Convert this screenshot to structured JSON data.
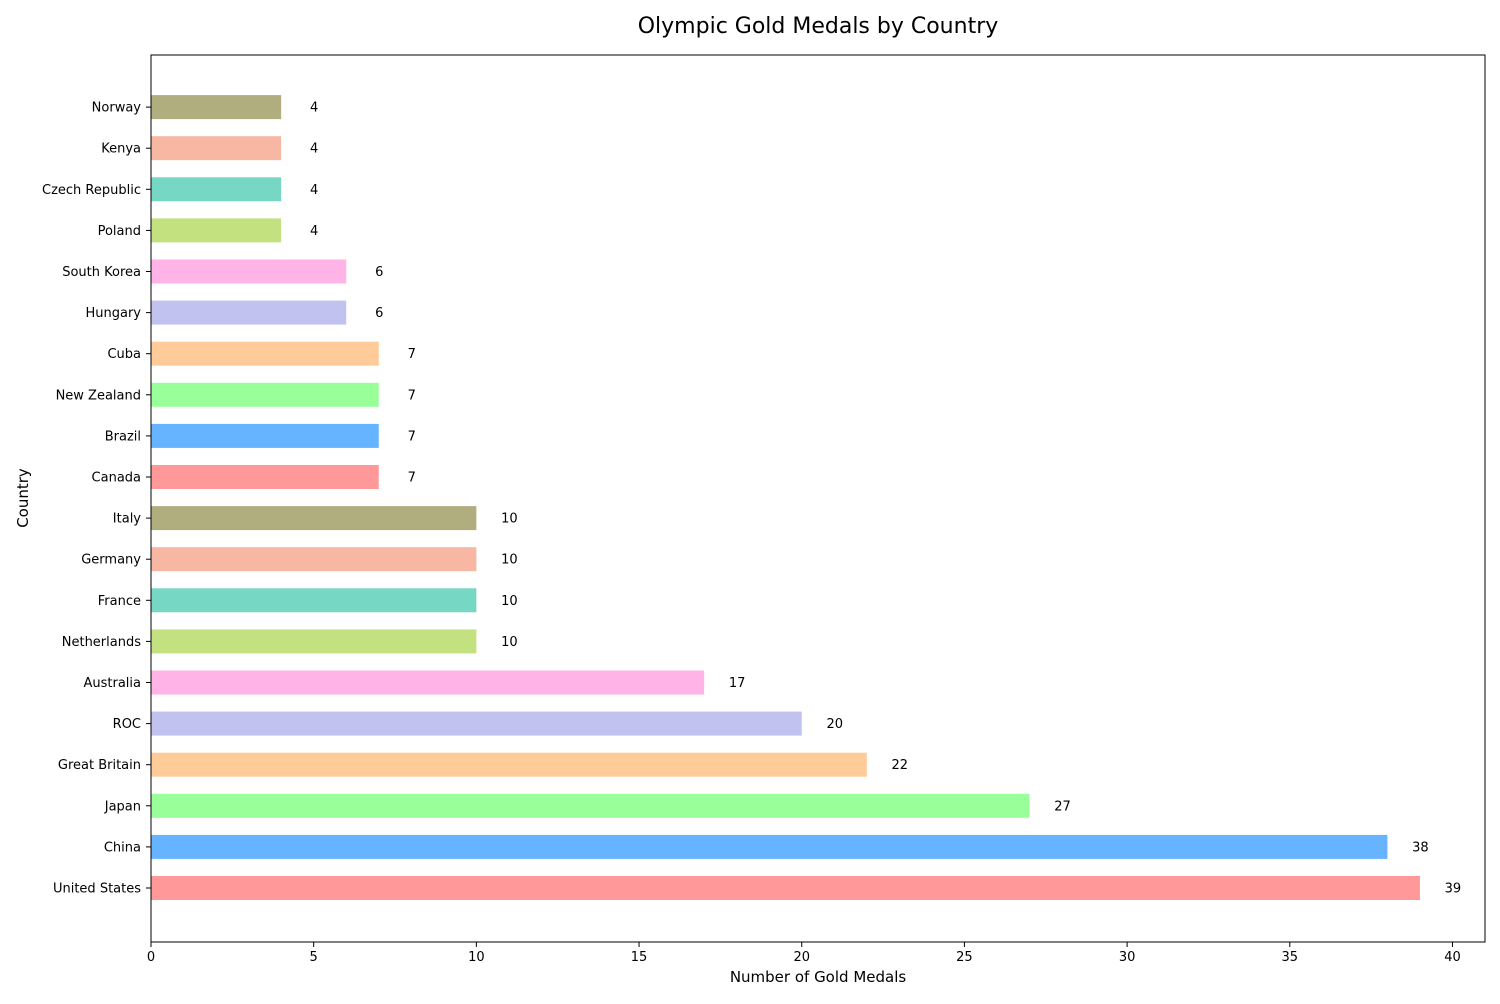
{
  "chart_data": {
    "type": "bar",
    "orientation": "horizontal",
    "title": "Olympic Gold Medals by Country",
    "xlabel": "Number of Gold Medals",
    "ylabel": "Country",
    "xlim": [
      0,
      41
    ],
    "x_ticks": [
      0,
      5,
      10,
      15,
      20,
      25,
      30,
      35,
      40
    ],
    "grid": false,
    "legend": "none",
    "categories": [
      "United States",
      "China",
      "Japan",
      "Great Britain",
      "ROC",
      "Australia",
      "Netherlands",
      "France",
      "Germany",
      "Italy",
      "Canada",
      "Brazil",
      "New Zealand",
      "Cuba",
      "Hungary",
      "South Korea",
      "Poland",
      "Czech Republic",
      "Kenya",
      "Norway"
    ],
    "values": [
      39,
      38,
      27,
      22,
      20,
      17,
      10,
      10,
      10,
      10,
      7,
      7,
      7,
      7,
      6,
      6,
      4,
      4,
      4,
      4
    ],
    "colors": [
      "#ff9999",
      "#66b3ff",
      "#99ff99",
      "#ffcc99",
      "#c2c2f0",
      "#ffb3e6",
      "#c4e17f",
      "#76d7c4",
      "#f7b7a3",
      "#b0ae7e",
      "#ff9999",
      "#66b3ff",
      "#99ff99",
      "#ffcc99",
      "#c2c2f0",
      "#ffb3e6",
      "#c4e17f",
      "#76d7c4",
      "#f7b7a3",
      "#b0ae7e"
    ]
  }
}
